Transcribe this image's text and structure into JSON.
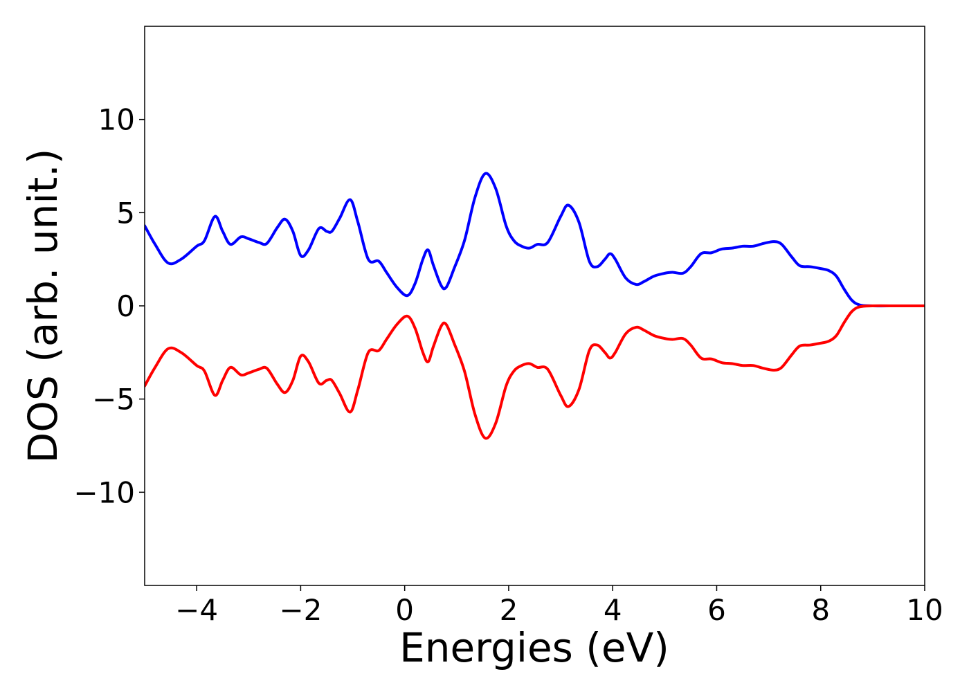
{
  "chart_data": {
    "type": "line",
    "title": "",
    "xlabel": "Energies (eV)",
    "ylabel": "DOS (arb. unit.)",
    "xlim": [
      -5,
      10
    ],
    "ylim": [
      -15,
      15
    ],
    "x_ticks": [
      -4,
      -2,
      0,
      2,
      4,
      6,
      8,
      10
    ],
    "y_ticks": [
      -10,
      -5,
      0,
      5,
      10
    ],
    "x_tick_labels": [
      "−4",
      "−2",
      "0",
      "2",
      "4",
      "6",
      "8",
      "10"
    ],
    "y_tick_labels": [
      "−10",
      "−5",
      "0",
      "5",
      "10"
    ],
    "grid": false,
    "legend": "none",
    "series": [
      {
        "color": "#0000ff",
        "x": [
          -5.0,
          -4.8,
          -4.55,
          -4.3,
          -4.0,
          -3.85,
          -3.65,
          -3.5,
          -3.35,
          -3.15,
          -3.0,
          -2.8,
          -2.65,
          -2.45,
          -2.3,
          -2.15,
          -2.0,
          -1.85,
          -1.65,
          -1.5,
          -1.4,
          -1.25,
          -1.05,
          -0.9,
          -0.7,
          -0.5,
          -0.35,
          -0.15,
          0.05,
          0.2,
          0.35,
          0.45,
          0.55,
          0.7,
          0.8,
          0.95,
          1.15,
          1.35,
          1.55,
          1.75,
          1.95,
          2.1,
          2.25,
          2.4,
          2.55,
          2.75,
          3.0,
          3.15,
          3.35,
          3.55,
          3.7,
          3.85,
          3.95,
          4.05,
          4.25,
          4.45,
          4.6,
          4.8,
          5.0,
          5.15,
          5.35,
          5.5,
          5.7,
          5.9,
          6.1,
          6.3,
          6.5,
          6.7,
          6.9,
          7.1,
          7.25,
          7.45,
          7.6,
          7.8,
          8.0,
          8.15,
          8.3,
          8.45,
          8.6,
          8.75,
          9.0,
          9.5,
          10.0
        ],
        "values": [
          4.3,
          3.3,
          2.3,
          2.5,
          3.2,
          3.5,
          4.8,
          4.0,
          3.3,
          3.7,
          3.6,
          3.4,
          3.35,
          4.2,
          4.65,
          4.0,
          2.7,
          3.0,
          4.15,
          4.0,
          4.0,
          4.7,
          5.7,
          4.5,
          2.5,
          2.4,
          1.8,
          1.0,
          0.55,
          1.2,
          2.5,
          3.0,
          2.2,
          1.1,
          1.0,
          2.0,
          3.5,
          5.8,
          7.1,
          6.3,
          4.3,
          3.5,
          3.2,
          3.1,
          3.3,
          3.4,
          4.8,
          5.4,
          4.5,
          2.4,
          2.1,
          2.5,
          2.8,
          2.5,
          1.5,
          1.15,
          1.3,
          1.6,
          1.75,
          1.8,
          1.75,
          2.1,
          2.8,
          2.85,
          3.05,
          3.1,
          3.2,
          3.2,
          3.35,
          3.45,
          3.3,
          2.6,
          2.15,
          2.1,
          2.0,
          1.9,
          1.6,
          0.9,
          0.3,
          0.05,
          0.0,
          0.0,
          0.0
        ]
      },
      {
        "color": "#ff0000",
        "x": [
          -5.0,
          -4.8,
          -4.55,
          -4.3,
          -4.0,
          -3.85,
          -3.65,
          -3.5,
          -3.35,
          -3.15,
          -3.0,
          -2.8,
          -2.65,
          -2.45,
          -2.3,
          -2.15,
          -2.0,
          -1.85,
          -1.65,
          -1.5,
          -1.4,
          -1.25,
          -1.05,
          -0.9,
          -0.7,
          -0.5,
          -0.35,
          -0.15,
          0.05,
          0.2,
          0.35,
          0.45,
          0.55,
          0.7,
          0.8,
          0.95,
          1.15,
          1.35,
          1.55,
          1.75,
          1.95,
          2.1,
          2.25,
          2.4,
          2.55,
          2.75,
          3.0,
          3.15,
          3.35,
          3.55,
          3.7,
          3.85,
          3.95,
          4.05,
          4.25,
          4.45,
          4.6,
          4.8,
          5.0,
          5.15,
          5.35,
          5.5,
          5.7,
          5.9,
          6.1,
          6.3,
          6.5,
          6.7,
          6.9,
          7.1,
          7.25,
          7.45,
          7.6,
          7.8,
          8.0,
          8.15,
          8.3,
          8.45,
          8.6,
          8.75,
          9.0,
          9.5,
          10.0
        ],
        "values": [
          -4.3,
          -3.3,
          -2.3,
          -2.5,
          -3.2,
          -3.5,
          -4.8,
          -4.0,
          -3.3,
          -3.7,
          -3.6,
          -3.4,
          -3.35,
          -4.2,
          -4.65,
          -4.0,
          -2.7,
          -3.0,
          -4.15,
          -4.0,
          -4.0,
          -4.7,
          -5.7,
          -4.5,
          -2.5,
          -2.4,
          -1.8,
          -1.0,
          -0.55,
          -1.2,
          -2.5,
          -3.0,
          -2.2,
          -1.1,
          -1.0,
          -2.0,
          -3.5,
          -5.8,
          -7.1,
          -6.3,
          -4.3,
          -3.5,
          -3.2,
          -3.1,
          -3.3,
          -3.4,
          -4.8,
          -5.4,
          -4.5,
          -2.4,
          -2.1,
          -2.5,
          -2.8,
          -2.5,
          -1.5,
          -1.15,
          -1.3,
          -1.6,
          -1.75,
          -1.8,
          -1.75,
          -2.1,
          -2.8,
          -2.85,
          -3.05,
          -3.1,
          -3.2,
          -3.2,
          -3.35,
          -3.45,
          -3.3,
          -2.6,
          -2.15,
          -2.1,
          -2.0,
          -1.9,
          -1.6,
          -0.9,
          -0.3,
          -0.05,
          0.0,
          0.0,
          0.0
        ]
      }
    ]
  }
}
